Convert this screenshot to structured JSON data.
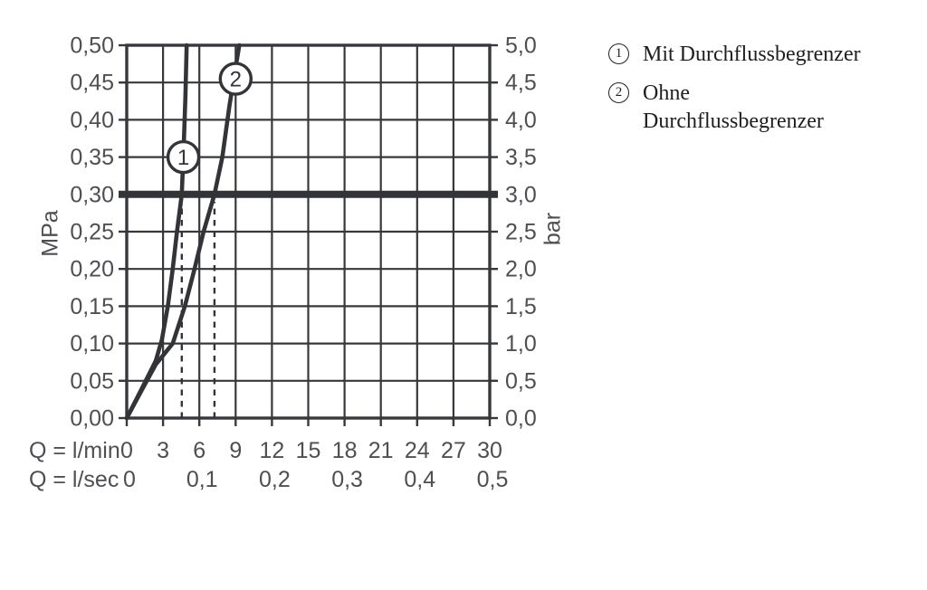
{
  "page": {
    "background": "#ffffff"
  },
  "colors": {
    "line": "#333438",
    "grid": "#37383c",
    "axis_text": "#4e4f52",
    "legend_text": "#1e1e1e",
    "badge_fill": "#ffffff"
  },
  "chart_data": {
    "type": "line",
    "title": "",
    "x_axis": {
      "label_lmin": "Q = l/min",
      "label_lsec": "Q = l/sec",
      "range": [
        0,
        30
      ],
      "lmin_ticks": [
        0,
        3,
        6,
        9,
        12,
        15,
        18,
        21,
        24,
        27,
        30
      ],
      "lsec_ticks": [
        {
          "label": "0",
          "x": 0
        },
        {
          "label": "0,1",
          "x": 6
        },
        {
          "label": "0,2",
          "x": 12
        },
        {
          "label": "0,3",
          "x": 18
        },
        {
          "label": "0,4",
          "x": 24
        },
        {
          "label": "0,5",
          "x": 30
        }
      ]
    },
    "y_left": {
      "unit": "MPa",
      "range": [
        0,
        0.5
      ],
      "ticks": [
        "0,00",
        "0,05",
        "0,10",
        "0,15",
        "0,20",
        "0,25",
        "0,30",
        "0,35",
        "0,40",
        "0,45",
        "0,50"
      ]
    },
    "y_right": {
      "unit": "bar",
      "range": [
        0,
        5.0
      ],
      "ticks": [
        "0,0",
        "0,5",
        "1,0",
        "1,5",
        "2,0",
        "2,5",
        "3,0",
        "3,5",
        "4,0",
        "4,5",
        "5,0"
      ]
    },
    "grid": true,
    "series": [
      {
        "id": "1",
        "name": "Mit Durchflussbegrenzer",
        "points_lmin_mpa": [
          [
            0,
            0
          ],
          [
            1.2,
            0.038
          ],
          [
            2.4,
            0.077
          ],
          [
            2.9,
            0.105
          ],
          [
            3.4,
            0.15
          ],
          [
            3.8,
            0.2
          ],
          [
            4.15,
            0.25
          ],
          [
            4.55,
            0.3
          ],
          [
            4.7,
            0.36
          ],
          [
            4.85,
            0.43
          ],
          [
            4.95,
            0.5
          ]
        ]
      },
      {
        "id": "2",
        "name": "Ohne Durchflussbegrenzer",
        "points_lmin_mpa": [
          [
            0,
            0
          ],
          [
            1.2,
            0.036
          ],
          [
            2.4,
            0.072
          ],
          [
            3.2,
            0.088
          ],
          [
            3.8,
            0.1
          ],
          [
            4.8,
            0.15
          ],
          [
            5.6,
            0.2
          ],
          [
            6.35,
            0.25
          ],
          [
            7.25,
            0.3
          ],
          [
            7.9,
            0.35
          ],
          [
            8.5,
            0.42
          ],
          [
            9.0,
            0.47
          ],
          [
            9.3,
            0.5
          ]
        ]
      }
    ],
    "reference_line": {
      "y_mpa": 0.3,
      "y_bar": 3.0
    },
    "guide_lines": [
      {
        "x_lmin": 4.55,
        "top_mpa": 0.287
      },
      {
        "x_lmin": 7.25,
        "top_mpa": 0.29
      }
    ],
    "badges": [
      {
        "label": "1",
        "x_lmin": 4.68,
        "y_mpa": 0.35
      },
      {
        "label": "2",
        "x_lmin": 9.0,
        "y_mpa": 0.455
      }
    ]
  },
  "legend": {
    "items": [
      {
        "symbol": "1",
        "label": "Mit Durchflussbegrenzer"
      },
      {
        "symbol": "2",
        "label": "Ohne\nDurchflussbegrenzer"
      }
    ]
  }
}
